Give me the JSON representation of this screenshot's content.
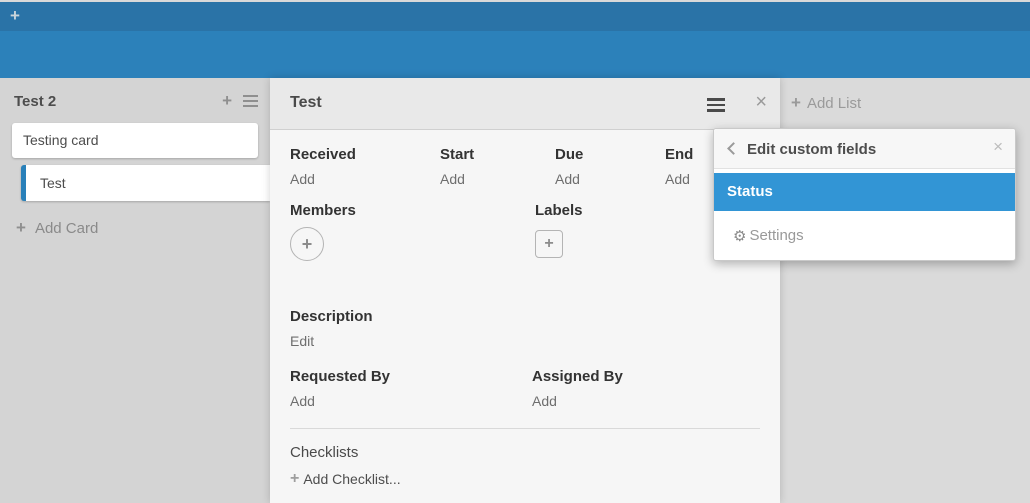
{
  "colors": {
    "navbar": "#2a73a7",
    "board_header": "#2c81ba",
    "canvas": "#dadada",
    "list_bg": "#d4d4d4",
    "panel_body": "#f6f6f6",
    "panel_header": "#e9e9e9",
    "selected_item": "#3295d5",
    "selected_card_border": "#2980b9"
  },
  "icons": {
    "plus": "+",
    "close": "×",
    "gear": "⚙"
  },
  "list": {
    "title": "Test 2",
    "cards": [
      {
        "title": "Testing card",
        "selected": false
      },
      {
        "title": "Test",
        "selected": true
      }
    ],
    "add_card_label": "Add Card"
  },
  "board": {
    "add_list_label": "Add List"
  },
  "card_detail": {
    "title": "Test",
    "date_fields": [
      {
        "label": "Received",
        "action": "Add"
      },
      {
        "label": "Start",
        "action": "Add"
      },
      {
        "label": "Due",
        "action": "Add"
      },
      {
        "label": "End",
        "action": "Add"
      }
    ],
    "members_label": "Members",
    "labels_label": "Labels",
    "description_label": "Description",
    "description_action": "Edit",
    "requested_by_label": "Requested By",
    "requested_by_action": "Add",
    "assigned_by_label": "Assigned By",
    "assigned_by_action": "Add",
    "checklists_label": "Checklists",
    "add_checklist_label": "Add Checklist..."
  },
  "popup": {
    "title": "Edit custom fields",
    "items": [
      {
        "label": "Status",
        "selected": true
      }
    ],
    "settings_label": "Settings"
  }
}
